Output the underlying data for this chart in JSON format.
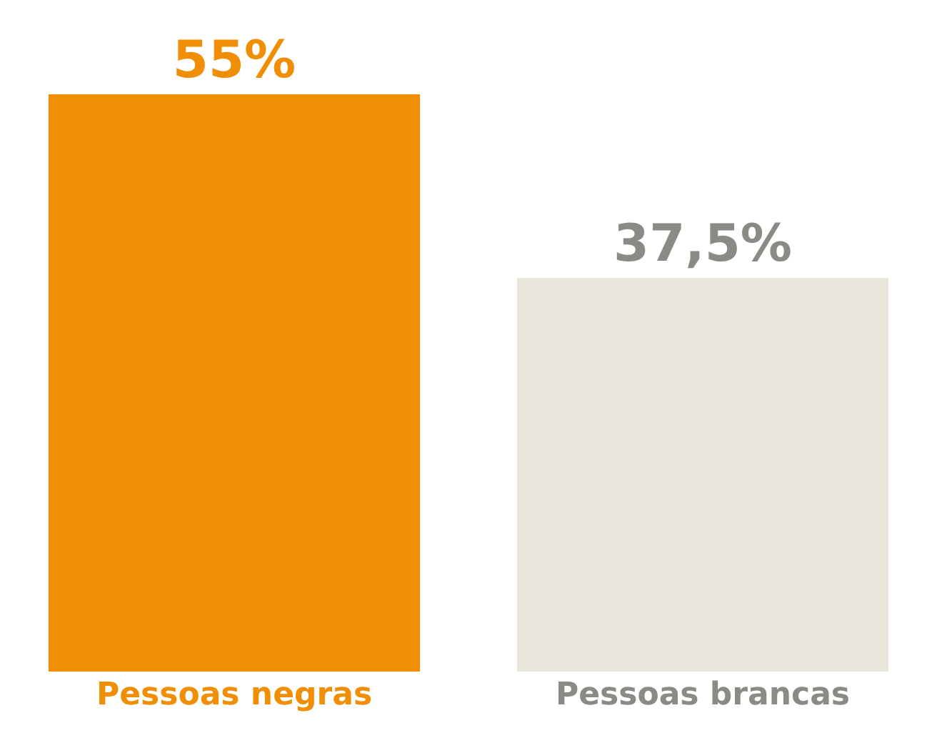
{
  "chart_data": {
    "type": "bar",
    "categories": [
      "Pessoas negras",
      "Pessoas brancas"
    ],
    "values": [
      55,
      37.5
    ],
    "value_labels": [
      "55%",
      "37,5%"
    ],
    "colors": [
      "#f08f05",
      "#e9e6dc"
    ],
    "ylim": [
      0,
      55
    ],
    "grid": false,
    "legend": false
  }
}
